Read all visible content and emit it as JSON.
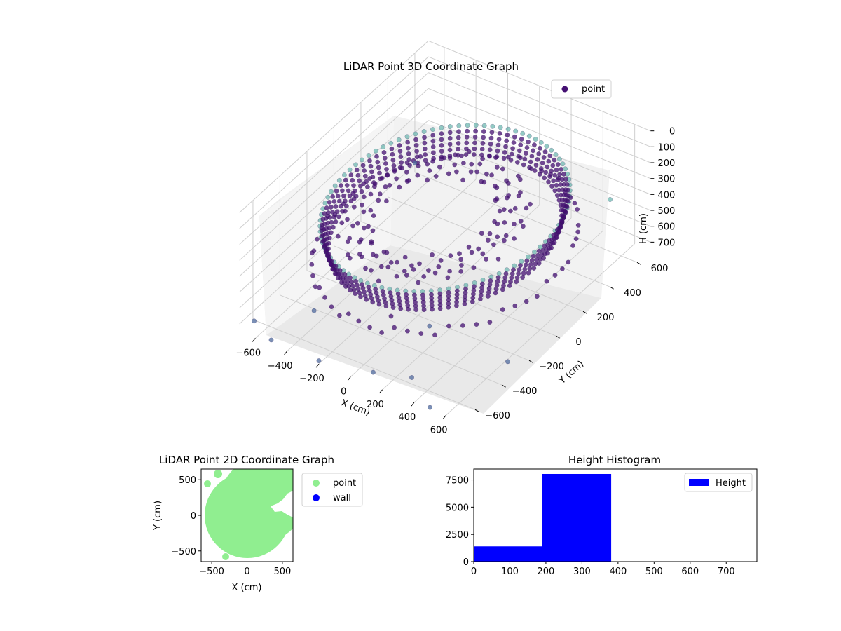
{
  "chart_data": [
    {
      "type": "scatter",
      "projection": "3d",
      "title": "LiDAR Point 3D Coordinate Graph",
      "xlabel": "X (cm)",
      "ylabel": "Y (cm)",
      "zlabel": "H (cm)",
      "xlim": [
        -700,
        700
      ],
      "ylim": [
        -700,
        700
      ],
      "zlim": [
        0,
        750
      ],
      "z_inverted": true,
      "xticks": [
        "−600",
        "−400",
        "−200",
        "0",
        "200",
        "400",
        "600"
      ],
      "yticks": [
        "−600",
        "−400",
        "−200",
        "0",
        "200",
        "400",
        "600"
      ],
      "zticks": [
        "0",
        "100",
        "200",
        "300",
        "400",
        "500",
        "600",
        "700"
      ],
      "legend": {
        "entries": [
          "point"
        ],
        "placement": "top-right"
      },
      "grid": true,
      "series": [
        {
          "name": "point",
          "color": "#440f72",
          "description": "ring of points around radius ~600 cm, most at H 200–380 cm",
          "ring_radius": 600,
          "ring_heights": [
            230,
            260,
            290,
            320,
            350,
            380
          ],
          "sample_points": [
            {
              "x": -650,
              "y": -650,
              "h": 700
            },
            {
              "x": -500,
              "y": -700,
              "h": 720
            },
            {
              "x": -200,
              "y": -700,
              "h": 730
            },
            {
              "x": 100,
              "y": -650,
              "h": 720
            },
            {
              "x": 300,
              "y": -600,
              "h": 710
            },
            {
              "x": 500,
              "y": -700,
              "h": 740
            },
            {
              "x": 650,
              "y": -300,
              "h": 700
            },
            {
              "x": 700,
              "y": 400,
              "h": 200
            },
            {
              "x": -700,
              "y": 600,
              "h": 690
            },
            {
              "x": -400,
              "y": -500,
              "h": 650
            },
            {
              "x": 0,
              "y": -400,
              "h": 600
            },
            {
              "x": 200,
              "y": -350,
              "h": 620
            }
          ]
        }
      ]
    },
    {
      "type": "scatter",
      "title": "LiDAR Point 2D Coordinate Graph",
      "xlabel": "X (cm)",
      "ylabel": "Y (cm)",
      "xlim": [
        -650,
        650
      ],
      "ylim": [
        -650,
        650
      ],
      "xticks": [
        "−500",
        "0",
        "500"
      ],
      "yticks": [
        "500",
        "0",
        "−500"
      ],
      "legend": {
        "entries": [
          "point",
          "wall"
        ],
        "placement": "right-outside"
      },
      "series": [
        {
          "name": "point",
          "color": "#90ee90",
          "description": "filled disk of radius ~600 cm"
        },
        {
          "name": "wall",
          "color": "#0000ff",
          "points": []
        }
      ]
    },
    {
      "type": "bar",
      "title": "Height Histogram",
      "xlabel": "",
      "ylabel": "",
      "xlim": [
        0,
        785
      ],
      "ylim": [
        0,
        8500
      ],
      "xticks": [
        "0",
        "100",
        "200",
        "300",
        "400",
        "500",
        "600",
        "700"
      ],
      "yticks": [
        "0",
        "2500",
        "5000",
        "7500"
      ],
      "legend": {
        "entries": [
          "Height"
        ],
        "placement": "top-right"
      },
      "bins": [
        {
          "start": 0,
          "end": 190,
          "count": 1400
        },
        {
          "start": 190,
          "end": 381,
          "count": 8050
        },
        {
          "start": 381,
          "end": 785,
          "count": 10
        }
      ],
      "series": [
        {
          "name": "Height",
          "color": "#0000ff"
        }
      ]
    }
  ]
}
